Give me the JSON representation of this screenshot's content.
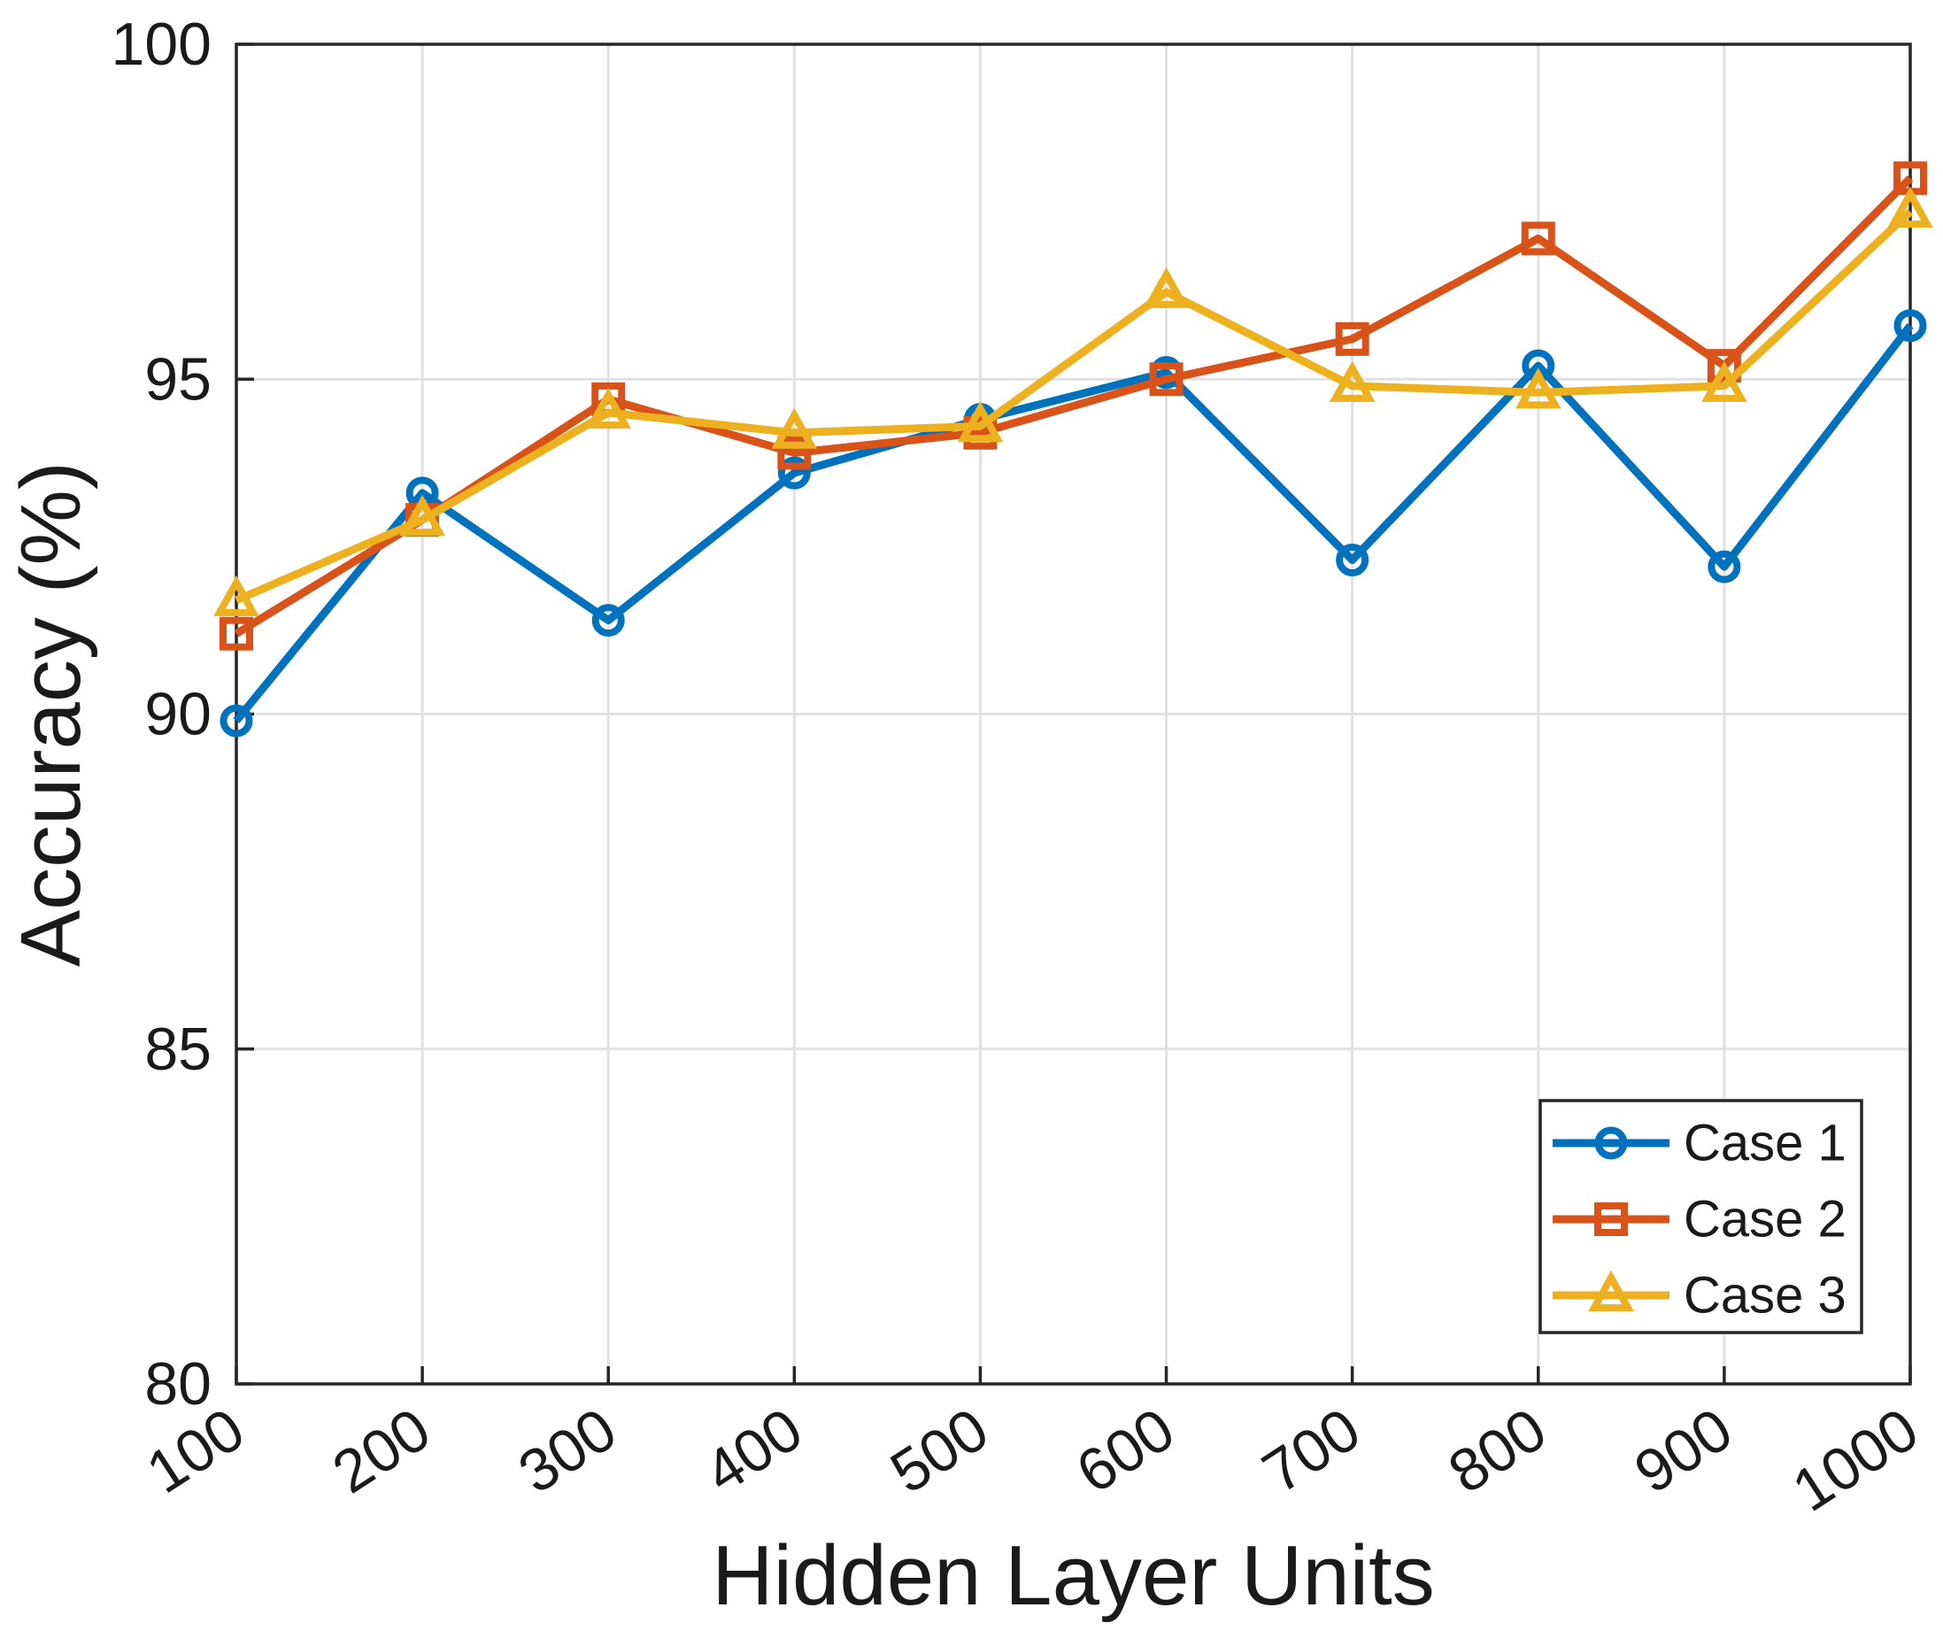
{
  "chart_data": {
    "type": "line",
    "title": "",
    "xlabel": "Hidden Layer Units",
    "ylabel": "Accuracy (%)",
    "x": [
      100,
      200,
      300,
      400,
      500,
      600,
      700,
      800,
      900,
      1000
    ],
    "x_tick_labels": [
      "100",
      "200",
      "300",
      "400",
      "500",
      "600",
      "700",
      "800",
      "900",
      "1000"
    ],
    "y_ticks": [
      80,
      85,
      90,
      95,
      100
    ],
    "y_tick_labels": [
      "80",
      "85",
      "90",
      "95",
      "100"
    ],
    "xlim": [
      100,
      1000
    ],
    "ylim": [
      80,
      100
    ],
    "grid": true,
    "box": true,
    "legend_position": "southeast",
    "series": [
      {
        "name": "Case 1",
        "marker": "circle",
        "color": "#0072BD",
        "values": [
          89.9,
          93.3,
          91.4,
          93.6,
          94.4,
          95.1,
          92.3,
          95.2,
          92.2,
          95.8
        ]
      },
      {
        "name": "Case 2",
        "marker": "square",
        "color": "#D95319",
        "values": [
          91.2,
          92.9,
          94.7,
          93.9,
          94.2,
          95.0,
          95.6,
          97.1,
          95.2,
          98.0
        ]
      },
      {
        "name": "Case 3",
        "marker": "triangle",
        "color": "#EDB120",
        "values": [
          91.7,
          92.9,
          94.5,
          94.2,
          94.3,
          96.3,
          94.9,
          94.8,
          94.9,
          97.5
        ]
      }
    ],
    "colors": {
      "axis": "#262626",
      "grid": "#E1E1E1",
      "background": "#FFFFFF",
      "legend_border": "#262626",
      "legend_background": "#FFFFFF"
    }
  }
}
